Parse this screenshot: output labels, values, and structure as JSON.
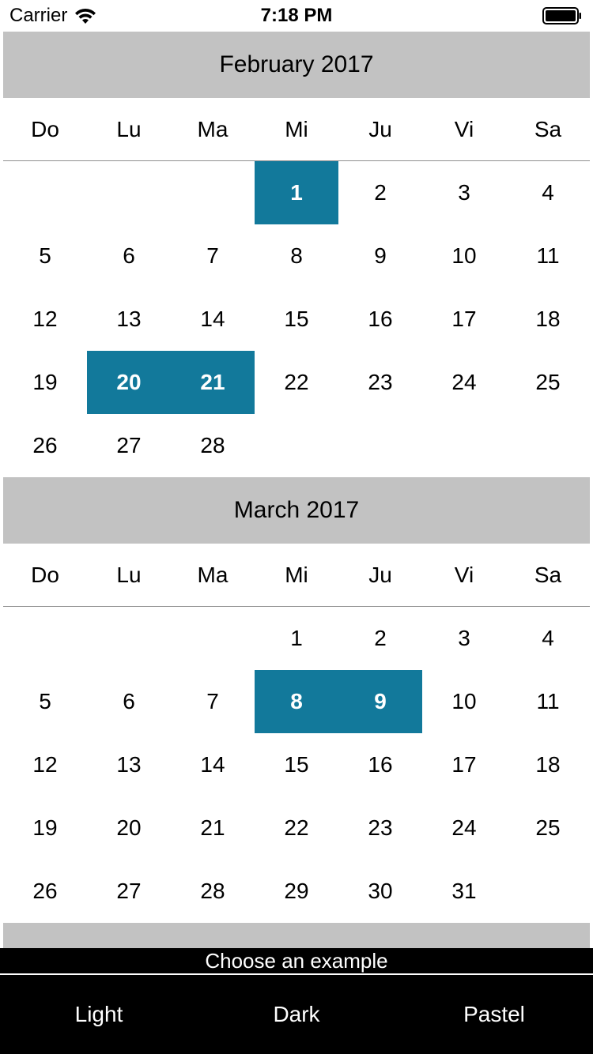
{
  "status_bar": {
    "carrier": "Carrier",
    "time": "7:18 PM"
  },
  "weekdays": [
    "Do",
    "Lu",
    "Ma",
    "Mi",
    "Ju",
    "Vi",
    "Sa"
  ],
  "months": [
    {
      "title": "February 2017",
      "weeks": [
        [
          "",
          "",
          "",
          "1",
          "2",
          "3",
          "4"
        ],
        [
          "5",
          "6",
          "7",
          "8",
          "9",
          "10",
          "11"
        ],
        [
          "12",
          "13",
          "14",
          "15",
          "16",
          "17",
          "18"
        ],
        [
          "19",
          "20",
          "21",
          "22",
          "23",
          "24",
          "25"
        ],
        [
          "26",
          "27",
          "28",
          "",
          "",
          "",
          ""
        ]
      ],
      "selected": [
        "1",
        "20",
        "21"
      ]
    },
    {
      "title": "March 2017",
      "weeks": [
        [
          "",
          "",
          "",
          "1",
          "2",
          "3",
          "4"
        ],
        [
          "5",
          "6",
          "7",
          "8",
          "9",
          "10",
          "11"
        ],
        [
          "12",
          "13",
          "14",
          "15",
          "16",
          "17",
          "18"
        ],
        [
          "19",
          "20",
          "21",
          "22",
          "23",
          "24",
          "25"
        ],
        [
          "26",
          "27",
          "28",
          "29",
          "30",
          "31",
          ""
        ]
      ],
      "selected": [
        "8",
        "9"
      ]
    }
  ],
  "chooser": {
    "title": "Choose an example",
    "options": [
      "Light",
      "Dark",
      "Pastel"
    ]
  },
  "colors": {
    "selected_bg": "#12799b",
    "month_header_bg": "#c2c2c2"
  },
  "icons": {
    "wifi": "wifi-icon",
    "battery": "battery-icon"
  }
}
